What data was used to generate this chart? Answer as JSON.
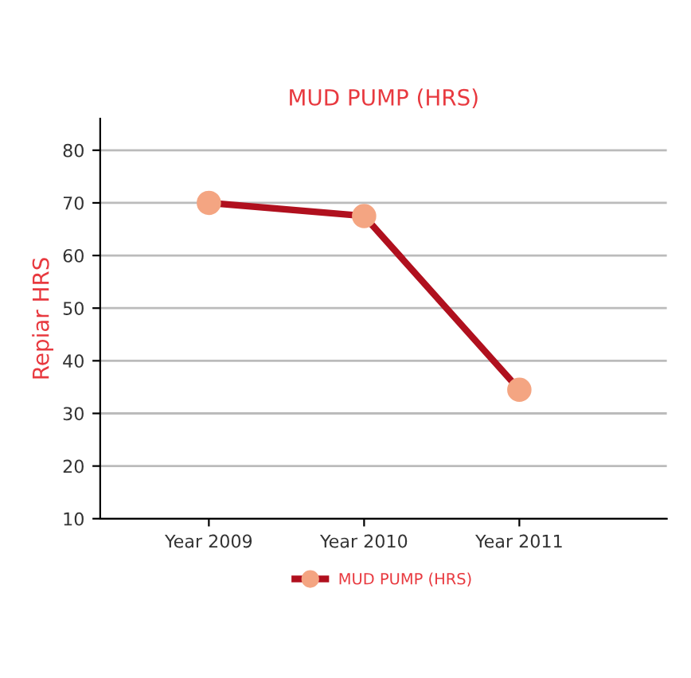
{
  "chart_data": {
    "type": "line",
    "title": "MUD PUMP (HRS)",
    "ylabel": "Repiar HRS",
    "categories": [
      "Year 2009",
      "Year 2010",
      "Year 2011"
    ],
    "series": [
      {
        "name": "MUD PUMP (HRS)",
        "color": "#b0101e",
        "values": [
          70,
          67.5,
          34.5
        ]
      }
    ],
    "ylim": [
      10,
      86
    ],
    "yticks": [
      10,
      20,
      30,
      40,
      50,
      60,
      70,
      80
    ],
    "grid": "y",
    "legend": "bottom",
    "marker": "circle",
    "line_style": "solid"
  }
}
